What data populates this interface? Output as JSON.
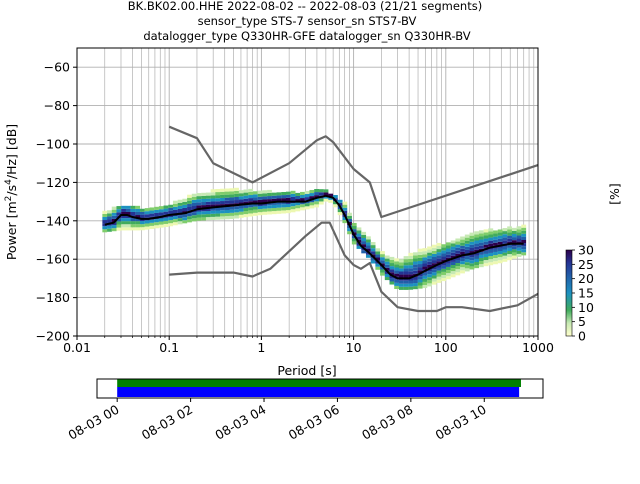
{
  "header": {
    "line1": "BK.BK02.00.HHE   2022-08-02 -- 2022-08-03  (21/21 segments)",
    "line2": "sensor_type STS-7 sensor_sn STS7-BV",
    "line3": "datalogger_type Q330HR-GFE datalogger_sn Q330HR-BV"
  },
  "chart_data": [
    {
      "type": "line",
      "title": "BK.BK02.00.HHE   2022-08-02 -- 2022-08-03  (21/21 segments)",
      "xlabel": "Period [s]",
      "ylabel": "Power [m²/s⁴/Hz] [dB]",
      "xscale": "log",
      "xlim": [
        0.01,
        1000
      ],
      "ylim": [
        -200,
        -50
      ],
      "xticks": [
        0.01,
        0.1,
        1,
        10,
        100,
        1000
      ],
      "xtick_labels": [
        "0.01",
        "0.1",
        "1",
        "10",
        "100",
        "1000"
      ],
      "yticks": [
        -200,
        -180,
        -160,
        -140,
        -120,
        -100,
        -80,
        -60
      ],
      "ytick_labels": [
        "−200",
        "−180",
        "−160",
        "−140",
        "−120",
        "−100",
        "−80",
        "−60"
      ],
      "grid": true,
      "series": [
        {
          "name": "",
          "color": "#666666",
          "x": [
            0.1,
            0.2,
            0.3,
            0.8,
            2,
            4,
            5,
            6,
            10,
            15,
            20,
            1000
          ],
          "y": [
            -91,
            -97,
            -110,
            -120,
            -110,
            -98,
            -96,
            -99,
            -113,
            -120,
            -138,
            -111
          ]
        },
        {
          "name": "",
          "color": "#666666",
          "x": [
            0.1,
            0.2,
            0.5,
            0.8,
            1.25,
            3,
            4.5,
            5.5,
            8,
            10,
            12,
            15,
            20,
            30,
            50,
            80,
            100,
            150,
            300,
            600,
            1000
          ],
          "y": [
            -168,
            -167,
            -167,
            -169,
            -165,
            -148,
            -141,
            -141,
            -158,
            -163,
            -165,
            -162,
            -177,
            -185,
            -187,
            -187,
            -185,
            -185,
            -187,
            -184,
            -178
          ]
        },
        {
          "name": "",
          "color": "#000000",
          "x": [
            0.02,
            0.025,
            0.03,
            0.035,
            0.04,
            0.05,
            0.06,
            0.08,
            0.1,
            0.15,
            0.2,
            0.3,
            0.5,
            0.8,
            1,
            1.5,
            2,
            3,
            4,
            5,
            6,
            7,
            8,
            10,
            12,
            15,
            20,
            25,
            30,
            40,
            50,
            60,
            80,
            100,
            150,
            200,
            300,
            500,
            700
          ],
          "y": [
            -142,
            -141,
            -137,
            -137,
            -138,
            -139,
            -139,
            -138,
            -137,
            -136,
            -134,
            -133,
            -132,
            -131,
            -131,
            -130,
            -130,
            -130,
            -128,
            -127,
            -128,
            -132,
            -137,
            -147,
            -153,
            -157,
            -163,
            -168,
            -170,
            -170,
            -168,
            -166,
            -163,
            -161,
            -158,
            -157,
            -154,
            -152,
            -152
          ]
        }
      ],
      "ppsd_band": {
        "x": [
          0.02,
          0.03,
          0.05,
          0.1,
          0.2,
          0.5,
          1,
          2,
          4,
          5,
          6,
          8,
          10,
          15,
          20,
          30,
          40,
          60,
          100,
          200,
          400,
          700
        ],
        "upper": [
          -136,
          -132,
          -134,
          -132,
          -126,
          -124,
          -125,
          -126,
          -125,
          -125,
          -127,
          -131,
          -141,
          -149,
          -157,
          -161,
          -158,
          -155,
          -152,
          -146,
          -145,
          -143
        ],
        "lower": [
          -146,
          -145,
          -145,
          -143,
          -140,
          -139,
          -137,
          -136,
          -133,
          -130,
          -131,
          -141,
          -152,
          -160,
          -168,
          -176,
          -176,
          -175,
          -171,
          -165,
          -162,
          -158
        ]
      },
      "colorbar": {
        "label": "[%]",
        "min": 0,
        "max": 30,
        "ticks": [
          0,
          5,
          10,
          15,
          20,
          25,
          30
        ],
        "tick_labels": [
          "0",
          "5",
          "10",
          "15",
          "20",
          "25",
          "30"
        ],
        "colors": [
          "#ffffcc",
          "#c7e9b4",
          "#7fcdbb",
          "#41b6c4",
          "#1d91c0",
          "#225ea8",
          "#0c2c84",
          "#2d004b"
        ]
      }
    },
    {
      "type": "timeline",
      "ticks": [
        "08-03 00",
        "08-03 02",
        "08-03 04",
        "08-03 06",
        "08-03 08",
        "08-03 10"
      ],
      "tick_hours": [
        0,
        2,
        4,
        6,
        8,
        10
      ],
      "xlim_hours": [
        -0.55,
        11.6
      ],
      "bars": [
        {
          "color": "#008000",
          "start_hour": 0,
          "end_hour": 11.0
        },
        {
          "color": "#0000ff",
          "start_hour": 0,
          "end_hour": 10.95
        }
      ]
    }
  ]
}
